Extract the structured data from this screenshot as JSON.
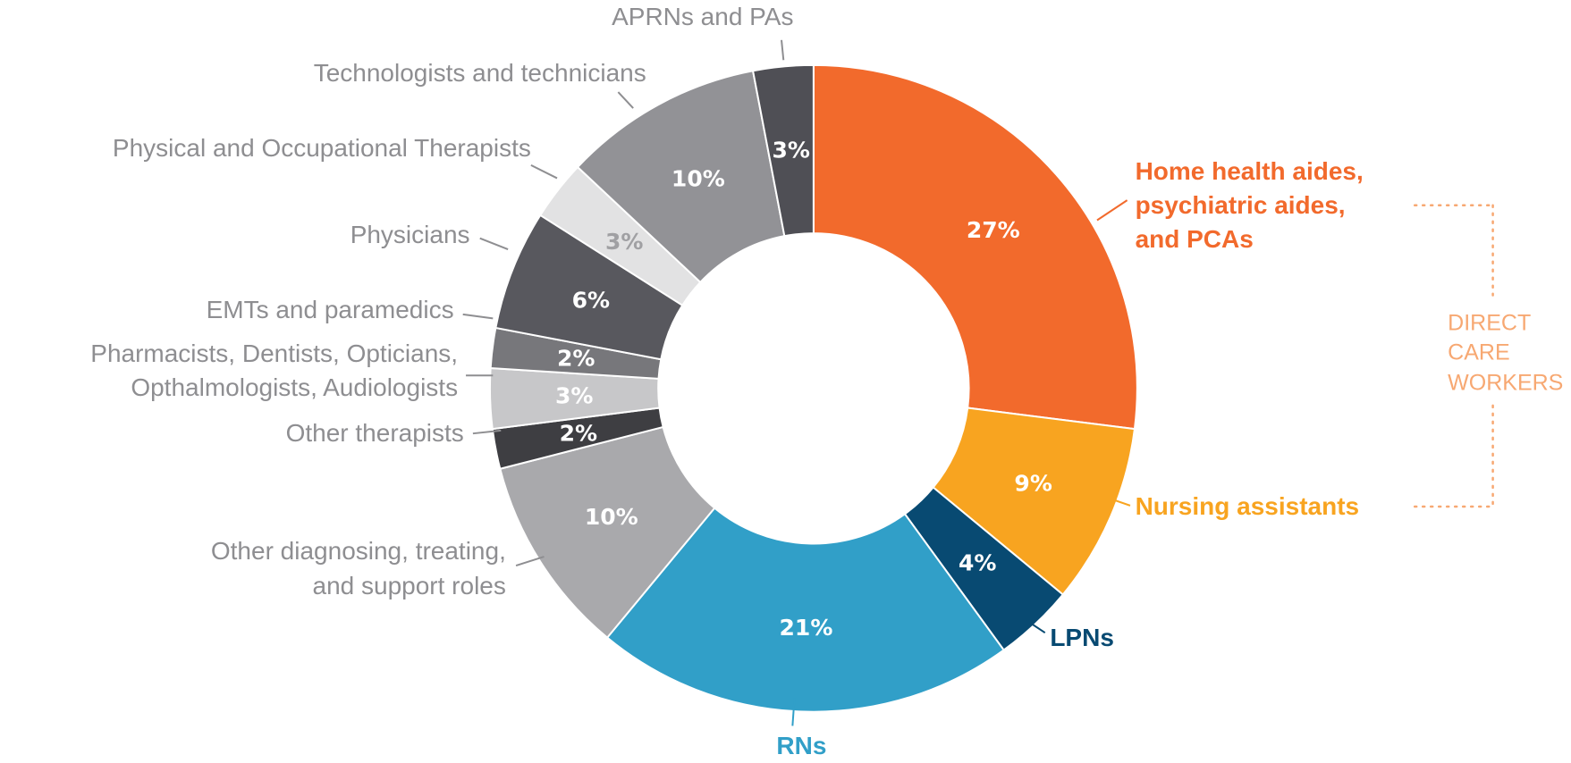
{
  "chart_data": {
    "type": "donut",
    "categories": [
      "Home health aides,\npsychiatric aides,\nand PCAs",
      "Nursing assistants",
      "LPNs",
      "RNs",
      "Other diagnosing, treating,\nand support roles",
      "Other therapists",
      "Pharmacists, Dentists, Opticians,\nOpthalmologists, Audiologists",
      "EMTs and paramedics",
      "Physicians",
      "Physical and Occupational Therapists",
      "Technologists and technicians",
      "APRNs and PAs"
    ],
    "values": [
      27,
      9,
      4,
      21,
      10,
      2,
      3,
      2,
      6,
      3,
      10,
      3
    ],
    "value_labels": [
      "27%",
      "9%",
      "4%",
      "21%",
      "10%",
      "2%",
      "3%",
      "2%",
      "6%",
      "3%",
      "10%",
      "3%"
    ],
    "colors": [
      "#f26a2c",
      "#f8a420",
      "#084a72",
      "#319fc8",
      "#a9a9ac",
      "#3e3e42",
      "#c7c7c9",
      "#77777b",
      "#58585e",
      "#e2e2e3",
      "#929296",
      "#4f4f55"
    ],
    "label_colors": [
      "#f26a2c",
      "#f8a420",
      "#084a72",
      "#319fc8",
      "#8e8e91",
      "#8e8e91",
      "#8e8e91",
      "#8e8e91",
      "#8e8e91",
      "#8e8e91",
      "#8e8e91",
      "#8e8e91"
    ],
    "value_label_colors": [
      "#ffffff",
      "#ffffff",
      "#ffffff",
      "#ffffff",
      "#ffffff",
      "#ffffff",
      "#ffffff",
      "#ffffff",
      "#ffffff",
      "#a0a0a3",
      "#ffffff",
      "#ffffff"
    ],
    "annotation": "DIRECT\nCARE\nWORKERS",
    "annotation_color": "#f7a872"
  }
}
